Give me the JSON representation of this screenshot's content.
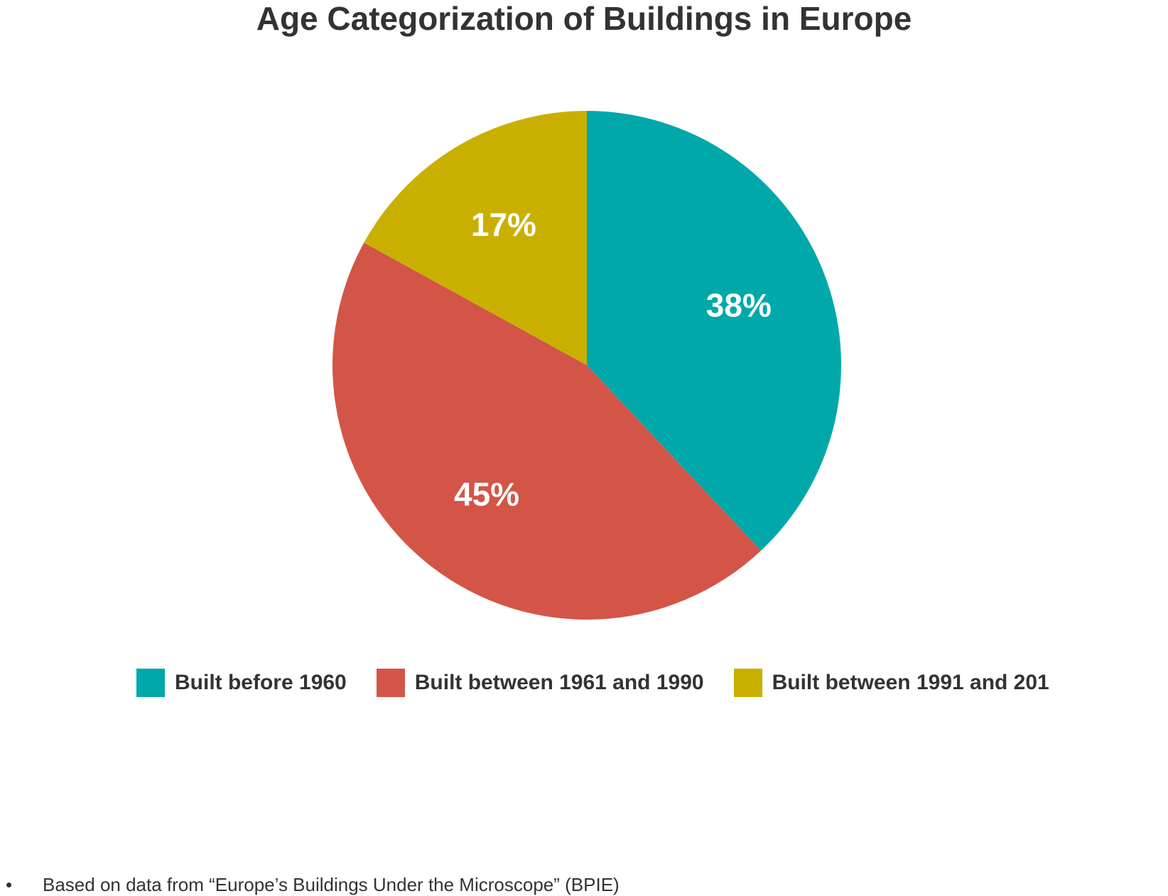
{
  "chart_data": {
    "type": "pie",
    "title": "Age Categorization of Buildings in Europe",
    "slices": [
      {
        "name": "Built before 1960",
        "value": 38,
        "label": "38%",
        "color": "#00A8AA"
      },
      {
        "name": "Built between 1961 and 1990",
        "value": 45,
        "label": "45%",
        "color": "#D35547"
      },
      {
        "name": "Built between 1991 and 201",
        "value": 17,
        "label": "17%",
        "color": "#C9B000"
      }
    ],
    "legend_position": "bottom",
    "start_angle": "top, clockwise"
  },
  "footnote": {
    "bullet": "•",
    "text": "Based on data from “Europe’s Buildings Under the Microscope” (BPIE)"
  }
}
